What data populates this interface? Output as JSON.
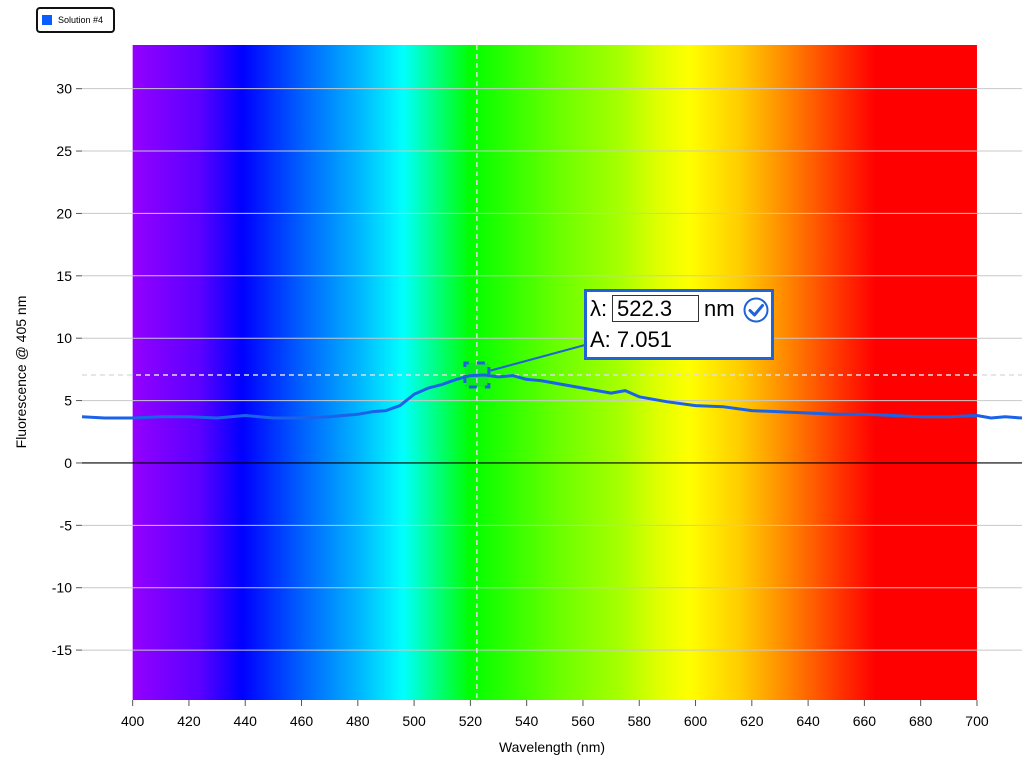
{
  "legend": {
    "label": "Solution #4",
    "color": "#0a5cff"
  },
  "readout": {
    "lambda_symbol": "λ:",
    "wavelength_value": "522.3",
    "unit": "nm",
    "absorbance_text": "A: 7.051"
  },
  "colors": {
    "series": "#1a62e8",
    "crosshair": "#dddddd",
    "grid": "#c8c8c8"
  },
  "chart_data": {
    "type": "line",
    "xlabel": "Wavelength (nm)",
    "ylabel": "Fluorescence @ 405 nm",
    "xlim": [
      382,
      716
    ],
    "ylim": [
      -19,
      33.5
    ],
    "xticks": [
      400,
      420,
      440,
      460,
      480,
      500,
      520,
      540,
      560,
      580,
      600,
      620,
      640,
      660,
      680,
      700
    ],
    "yticks": [
      -15,
      -10,
      -5,
      0,
      5,
      10,
      15,
      20,
      25,
      30
    ],
    "grid": true,
    "legend_position": "top-left",
    "spectrum_background": {
      "x_range": [
        400,
        700
      ]
    },
    "crosshair": {
      "x": 522.3,
      "y": 7.051
    },
    "series": [
      {
        "name": "Solution #4",
        "x": [
          382,
          390,
          400,
          410,
          420,
          430,
          440,
          450,
          460,
          470,
          480,
          485,
          490,
          495,
          500,
          505,
          510,
          515,
          520,
          525,
          530,
          535,
          540,
          545,
          550,
          555,
          560,
          565,
          570,
          575,
          580,
          590,
          600,
          610,
          620,
          630,
          640,
          650,
          660,
          670,
          680,
          690,
          700,
          705,
          710,
          716
        ],
        "y": [
          3.7,
          3.6,
          3.6,
          3.7,
          3.7,
          3.6,
          3.8,
          3.6,
          3.6,
          3.7,
          3.9,
          4.1,
          4.2,
          4.6,
          5.5,
          6.0,
          6.3,
          6.7,
          7.0,
          7.05,
          6.9,
          7.0,
          6.7,
          6.6,
          6.4,
          6.2,
          6.0,
          5.8,
          5.6,
          5.8,
          5.3,
          4.9,
          4.6,
          4.5,
          4.2,
          4.1,
          4.0,
          3.9,
          3.9,
          3.8,
          3.7,
          3.7,
          3.8,
          3.6,
          3.7,
          3.6
        ]
      }
    ]
  }
}
